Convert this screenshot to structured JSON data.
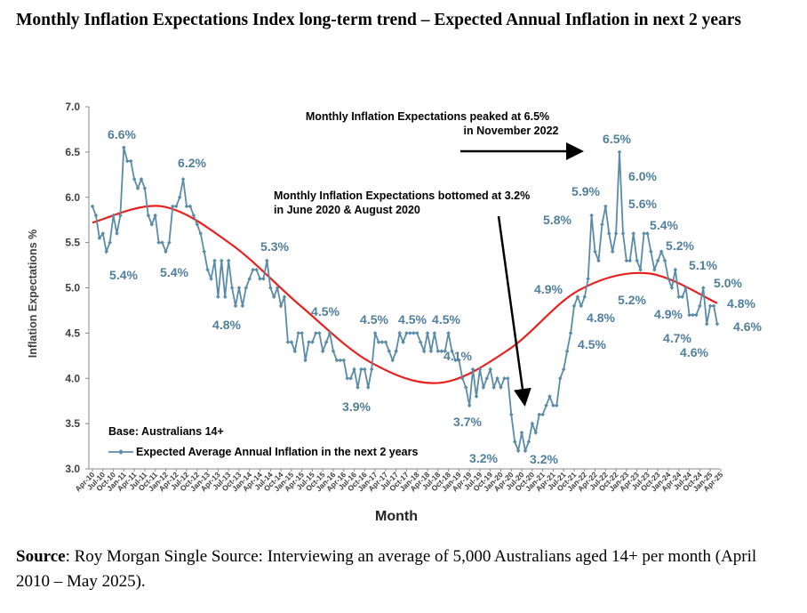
{
  "title": "Monthly Inflation Expectations Index long-term trend – Expected Annual Inflation in next 2 years",
  "source": {
    "label": "Source",
    "text": ": Roy Morgan Single Source: Interviewing an average of 5,000 Australians aged 14+ per month (April 2010 – May 2025)."
  },
  "colors": {
    "series": "#5a8ca8",
    "trend": "#e8201e",
    "text": "#404040"
  },
  "chart_data": {
    "type": "line",
    "title": "",
    "xlabel": "Month",
    "ylabel": "Inflation Expectations %",
    "ylim": [
      3.0,
      7.0
    ],
    "yticks": [
      "3.0",
      "3.5",
      "4.0",
      "4.5",
      "5.0",
      "5.5",
      "6.0",
      "6.5",
      "7.0"
    ],
    "xtick_labels": [
      "Apr-10",
      "Jul-10",
      "Oct-10",
      "Jan-11",
      "Apr-11",
      "Jul-11",
      "Oct-11",
      "Jan-12",
      "Apr-12",
      "Jul-12",
      "Oct-12",
      "Jan-13",
      "Apr-13",
      "Jul-13",
      "Oct-13",
      "Jan-14",
      "Apr-14",
      "Jul-14",
      "Oct-14",
      "Jan-15",
      "Apr-15",
      "Jul-15",
      "Oct-15",
      "Jan-16",
      "Apr-16",
      "Jul-16",
      "Oct-16",
      "Jan-17",
      "Apr-17",
      "Jul-17",
      "Oct-17",
      "Jan-18",
      "Apr-18",
      "Jul-18",
      "Oct-18",
      "Jan-19",
      "Apr-19",
      "Jul-19",
      "Oct-19",
      "Jan-20",
      "Apr-20",
      "Jul-20",
      "Oct-20",
      "Jan-21",
      "Apr-21",
      "Jul-21",
      "Oct-21",
      "Jan-22",
      "Apr-22",
      "Jul-22",
      "Oct-22",
      "Jan-23",
      "Apr-23",
      "Jul-23",
      "Oct-23",
      "Jan-24",
      "Apr-24",
      "Jul-24",
      "Oct-24",
      "Jan-25",
      "Apr-25"
    ],
    "base_note": "Base: Australians 14+",
    "series": [
      {
        "name": "Expected Average Annual Inflation in the next 2 years",
        "start": "Apr-10",
        "values": [
          5.9,
          5.8,
          5.55,
          5.6,
          5.4,
          5.5,
          5.8,
          5.6,
          5.8,
          6.55,
          6.4,
          6.4,
          6.2,
          6.1,
          6.2,
          6.1,
          5.8,
          5.7,
          5.8,
          5.5,
          5.5,
          5.4,
          5.5,
          5.9,
          5.9,
          6.0,
          6.2,
          5.9,
          5.9,
          5.8,
          5.7,
          5.6,
          5.4,
          5.2,
          5.1,
          5.3,
          4.9,
          5.3,
          4.9,
          5.3,
          5.0,
          4.8,
          5.0,
          4.8,
          5.0,
          5.1,
          5.2,
          5.2,
          5.1,
          5.1,
          5.3,
          5.0,
          4.9,
          5.0,
          4.8,
          4.9,
          4.4,
          4.4,
          4.3,
          4.5,
          4.5,
          4.2,
          4.4,
          4.4,
          4.5,
          4.5,
          4.3,
          4.4,
          4.5,
          4.3,
          4.2,
          4.2,
          4.2,
          4.0,
          4.0,
          4.1,
          3.9,
          4.1,
          4.1,
          3.9,
          4.1,
          4.5,
          4.4,
          4.4,
          4.4,
          4.3,
          4.2,
          4.3,
          4.5,
          4.4,
          4.5,
          4.5,
          4.5,
          4.5,
          4.4,
          4.3,
          4.5,
          4.3,
          4.5,
          4.3,
          4.3,
          4.3,
          4.5,
          4.3,
          4.2,
          4.2,
          4.0,
          3.9,
          3.7,
          4.1,
          3.8,
          4.1,
          3.9,
          4.0,
          4.1,
          3.9,
          4.0,
          3.9,
          4.0,
          4.0,
          3.6,
          3.3,
          3.2,
          3.4,
          3.2,
          3.3,
          3.5,
          3.4,
          3.6,
          3.6,
          3.7,
          3.8,
          3.7,
          3.7,
          4.0,
          4.1,
          4.3,
          4.5,
          4.8,
          4.9,
          4.8,
          4.9,
          5.1,
          5.8,
          5.4,
          5.3,
          5.7,
          5.9,
          5.6,
          5.4,
          5.6,
          6.5,
          5.6,
          5.3,
          5.3,
          5.6,
          5.3,
          5.2,
          5.6,
          5.6,
          5.4,
          5.2,
          5.3,
          5.4,
          5.3,
          5.1,
          5.0,
          5.2,
          4.9,
          4.9,
          5.0,
          4.7,
          4.7,
          4.7,
          4.8,
          5.0,
          4.6,
          4.8,
          4.8,
          4.6
        ]
      },
      {
        "name": "Trend",
        "values": [
          5.72,
          5.9,
          5.48,
          4.8,
          4.18,
          3.95,
          4.32,
          4.97,
          5.16,
          4.83
        ]
      }
    ],
    "data_labels": [
      "6.6%",
      "5.4%",
      "6.2%",
      "5.4%",
      "4.8%",
      "5.3%",
      "4.5%",
      "3.9%",
      "4.5%",
      "4.5%",
      "4.5%",
      "4.1%",
      "3.7%",
      "3.2%",
      "3.2%",
      "4.9%",
      "5.8%",
      "5.9%",
      "4.8%",
      "4.5%",
      "6.5%",
      "6.0%",
      "5.6%",
      "5.4%",
      "5.2%",
      "5.2%",
      "4.9%",
      "5.1%",
      "4.7%",
      "4.6%",
      "5.0%",
      "4.8%",
      "4.6%"
    ],
    "annotations": [
      "Monthly Inflation Expectations peaked at 6.5%",
      "in November 2022",
      "Monthly Inflation Expectations bottomed at 3.2%",
      "in June 2020 & August 2020"
    ]
  }
}
